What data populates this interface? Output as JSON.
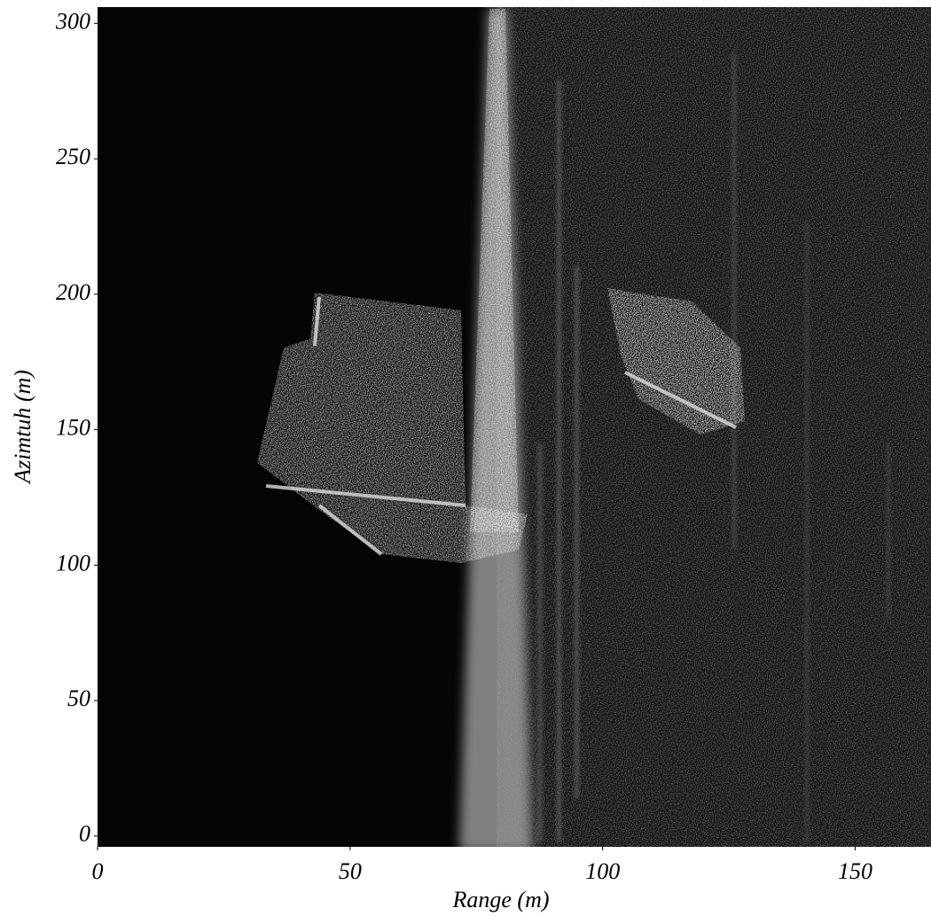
{
  "chart_data": {
    "type": "image",
    "x_label": "Range (m)",
    "y_label": "Azimtuh (m)",
    "xlim": [
      0,
      165
    ],
    "ylim": [
      -4,
      306
    ],
    "xticks": [
      0,
      50,
      100,
      150
    ],
    "yticks": [
      0,
      50,
      100,
      150,
      200,
      250,
      300
    ]
  }
}
